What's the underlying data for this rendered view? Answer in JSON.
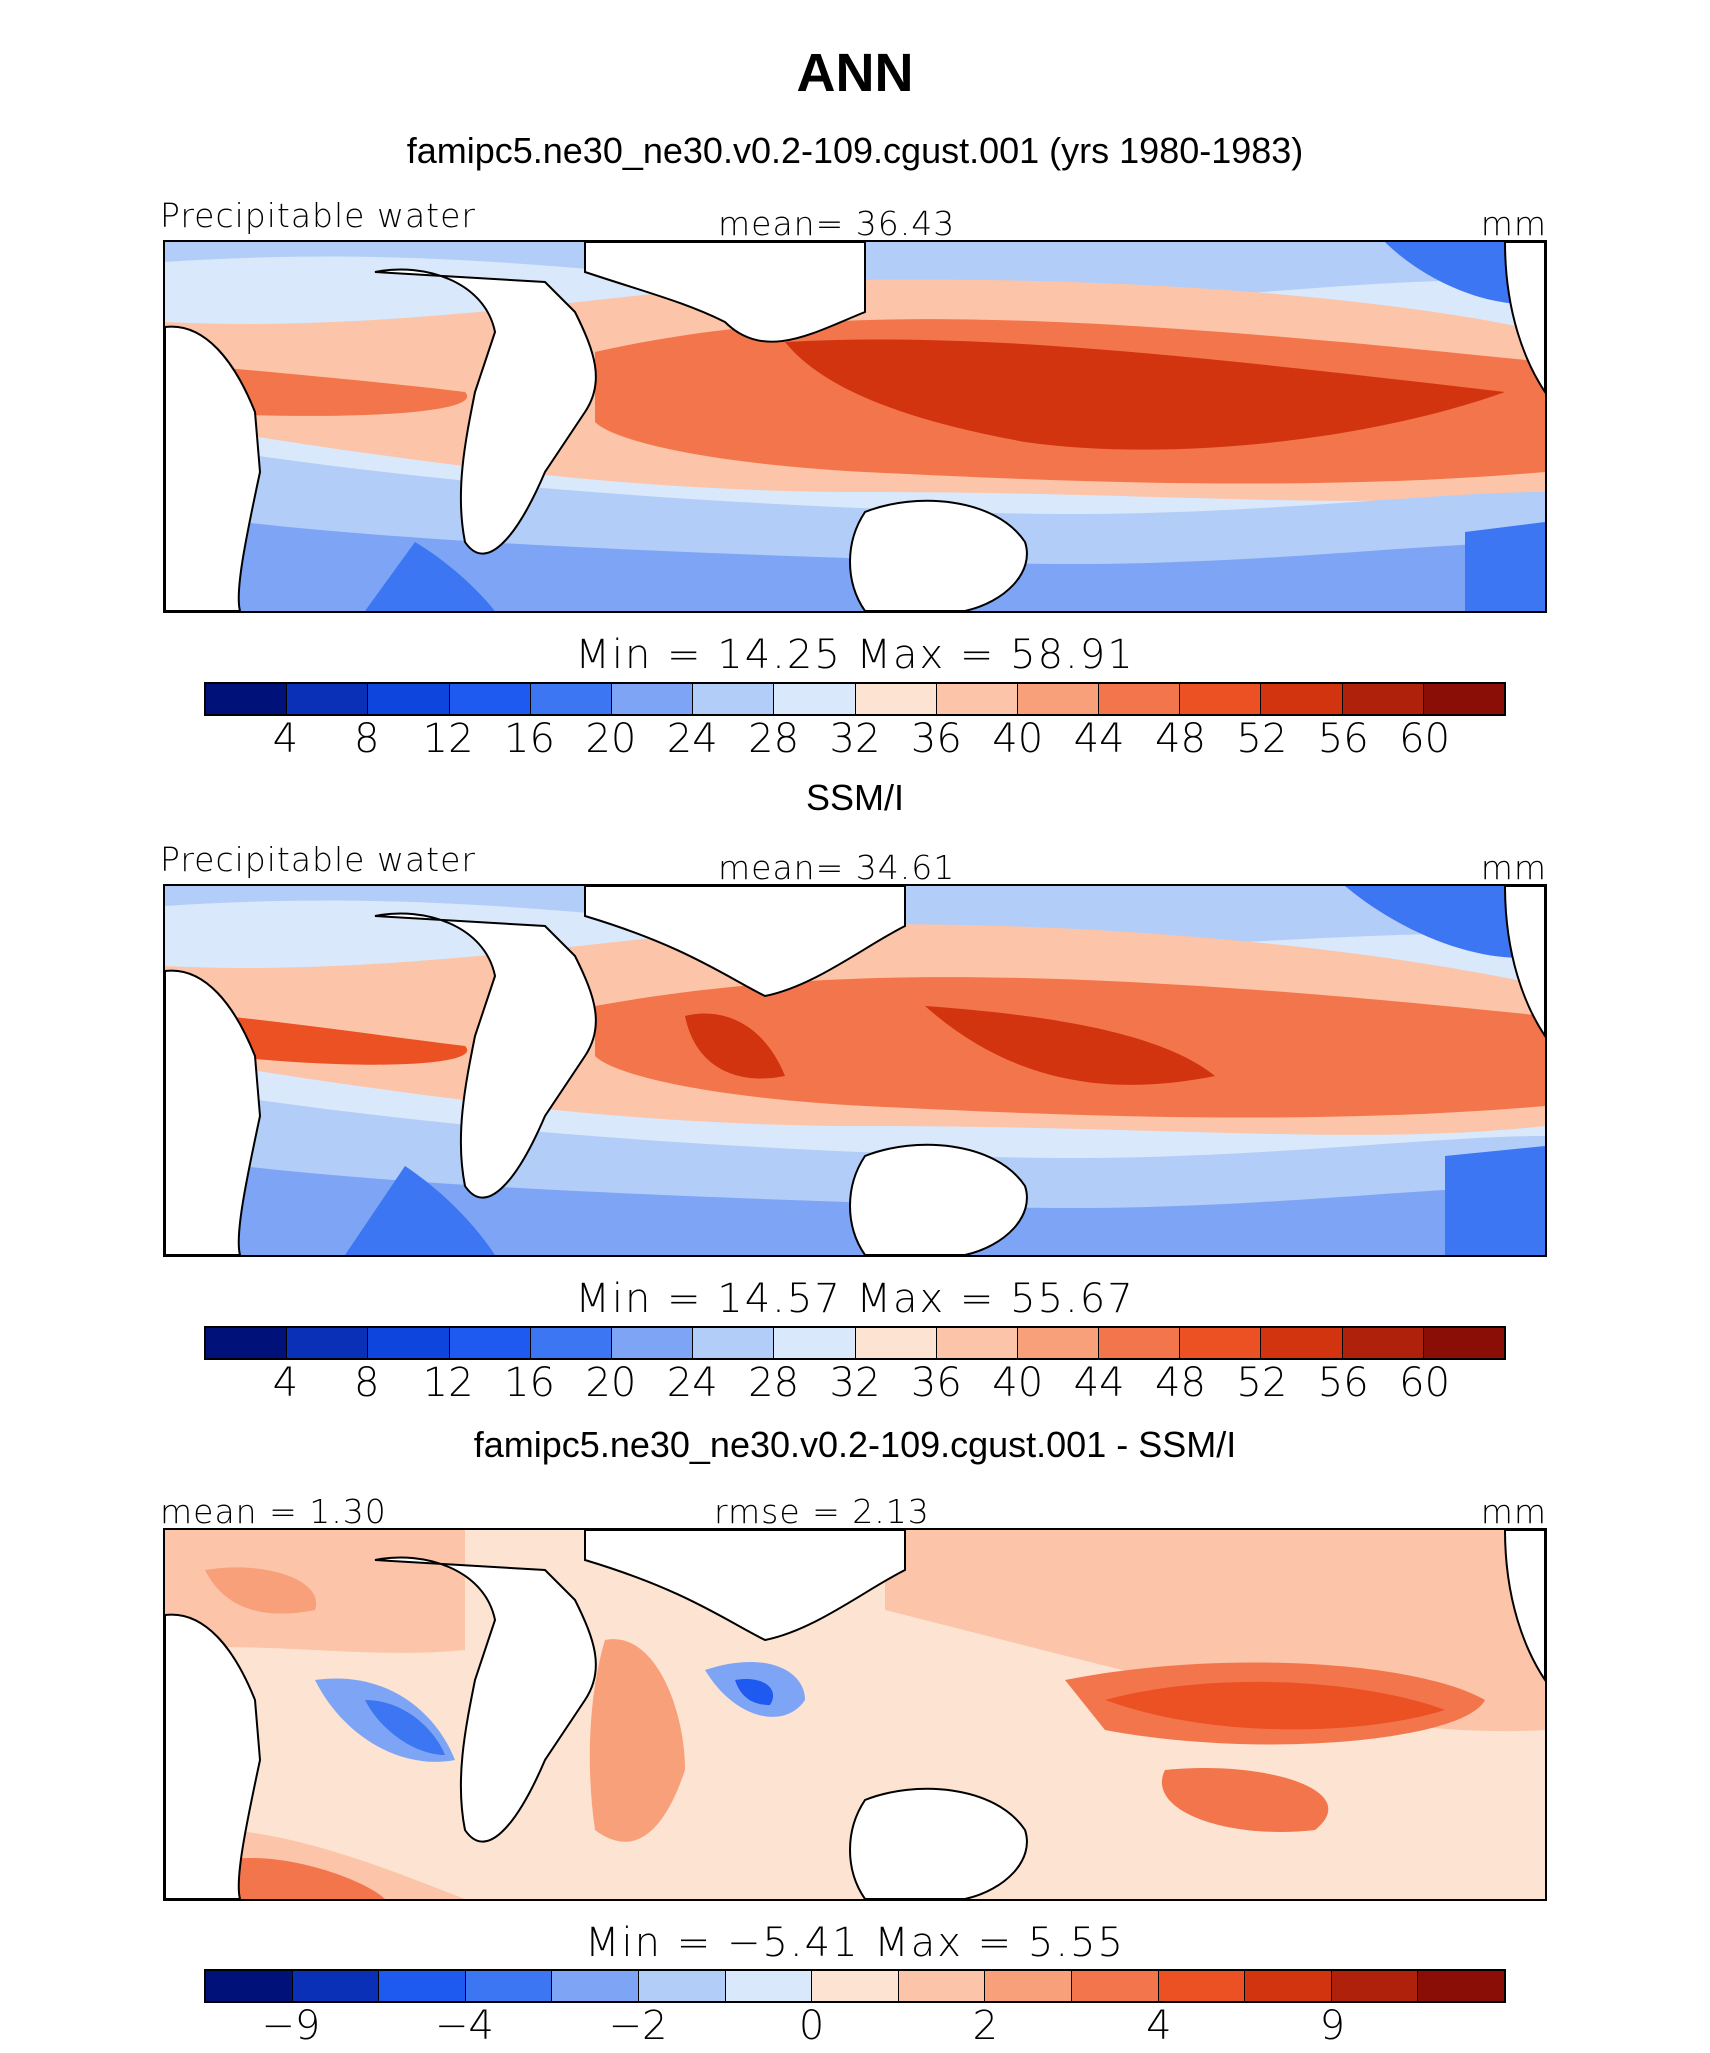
{
  "title": "ANN",
  "colors": {
    "precip_scale": [
      "#00127a",
      "#0a30b8",
      "#0e45dc",
      "#1f5af0",
      "#3d76f2",
      "#7ea5f5",
      "#b2cdf7",
      "#d9e8fb",
      "#fde3d1",
      "#fcc4a8",
      "#f8a07a",
      "#f3754b",
      "#eb5123",
      "#d2340f",
      "#b0210c",
      "#8a0e06"
    ],
    "diff_scale": [
      "#00127a",
      "#0a30b8",
      "#1f5af0",
      "#3d76f2",
      "#7ea5f5",
      "#b2cdf7",
      "#d9e8fb",
      "#fde3d1",
      "#fcc4a8",
      "#f8a07a",
      "#f3754b",
      "#eb5123",
      "#d2340f",
      "#b0210c",
      "#8a0e06"
    ]
  },
  "panels": [
    {
      "title": "famipc5.ne30_ne30.v0.2-109.cgust.001 (yrs 1980-1983)",
      "left_label": "Precipitable water",
      "center_label": "mean=   36.43",
      "units": "mm",
      "min_max": "Min  =    14.25  Max  =    58.91",
      "colorbar_labels": [
        "4",
        "8",
        "12",
        "16",
        "20",
        "24",
        "28",
        "32",
        "36",
        "40",
        "44",
        "48",
        "52",
        "56",
        "60"
      ],
      "field": "model"
    },
    {
      "title": "SSM/I",
      "left_label": "Precipitable water",
      "center_label": "mean=   34.61",
      "units": "mm",
      "min_max": "Min  =    14.57  Max  =    55.67",
      "colorbar_labels": [
        "4",
        "8",
        "12",
        "16",
        "20",
        "24",
        "28",
        "32",
        "36",
        "40",
        "44",
        "48",
        "52",
        "56",
        "60"
      ],
      "field": "obs"
    },
    {
      "title": "famipc5.ne30_ne30.v0.2-109.cgust.001 - SSM/I",
      "left_label": "mean  =     1.30",
      "center_label": "rmse  =     2.13",
      "units": "mm",
      "min_max": "Min  =    −5.41  Max  =      5.55",
      "colorbar_labels": [
        "−9",
        "−4",
        "−2",
        "0",
        "2",
        "4",
        "9"
      ],
      "field": "diff"
    }
  ]
}
